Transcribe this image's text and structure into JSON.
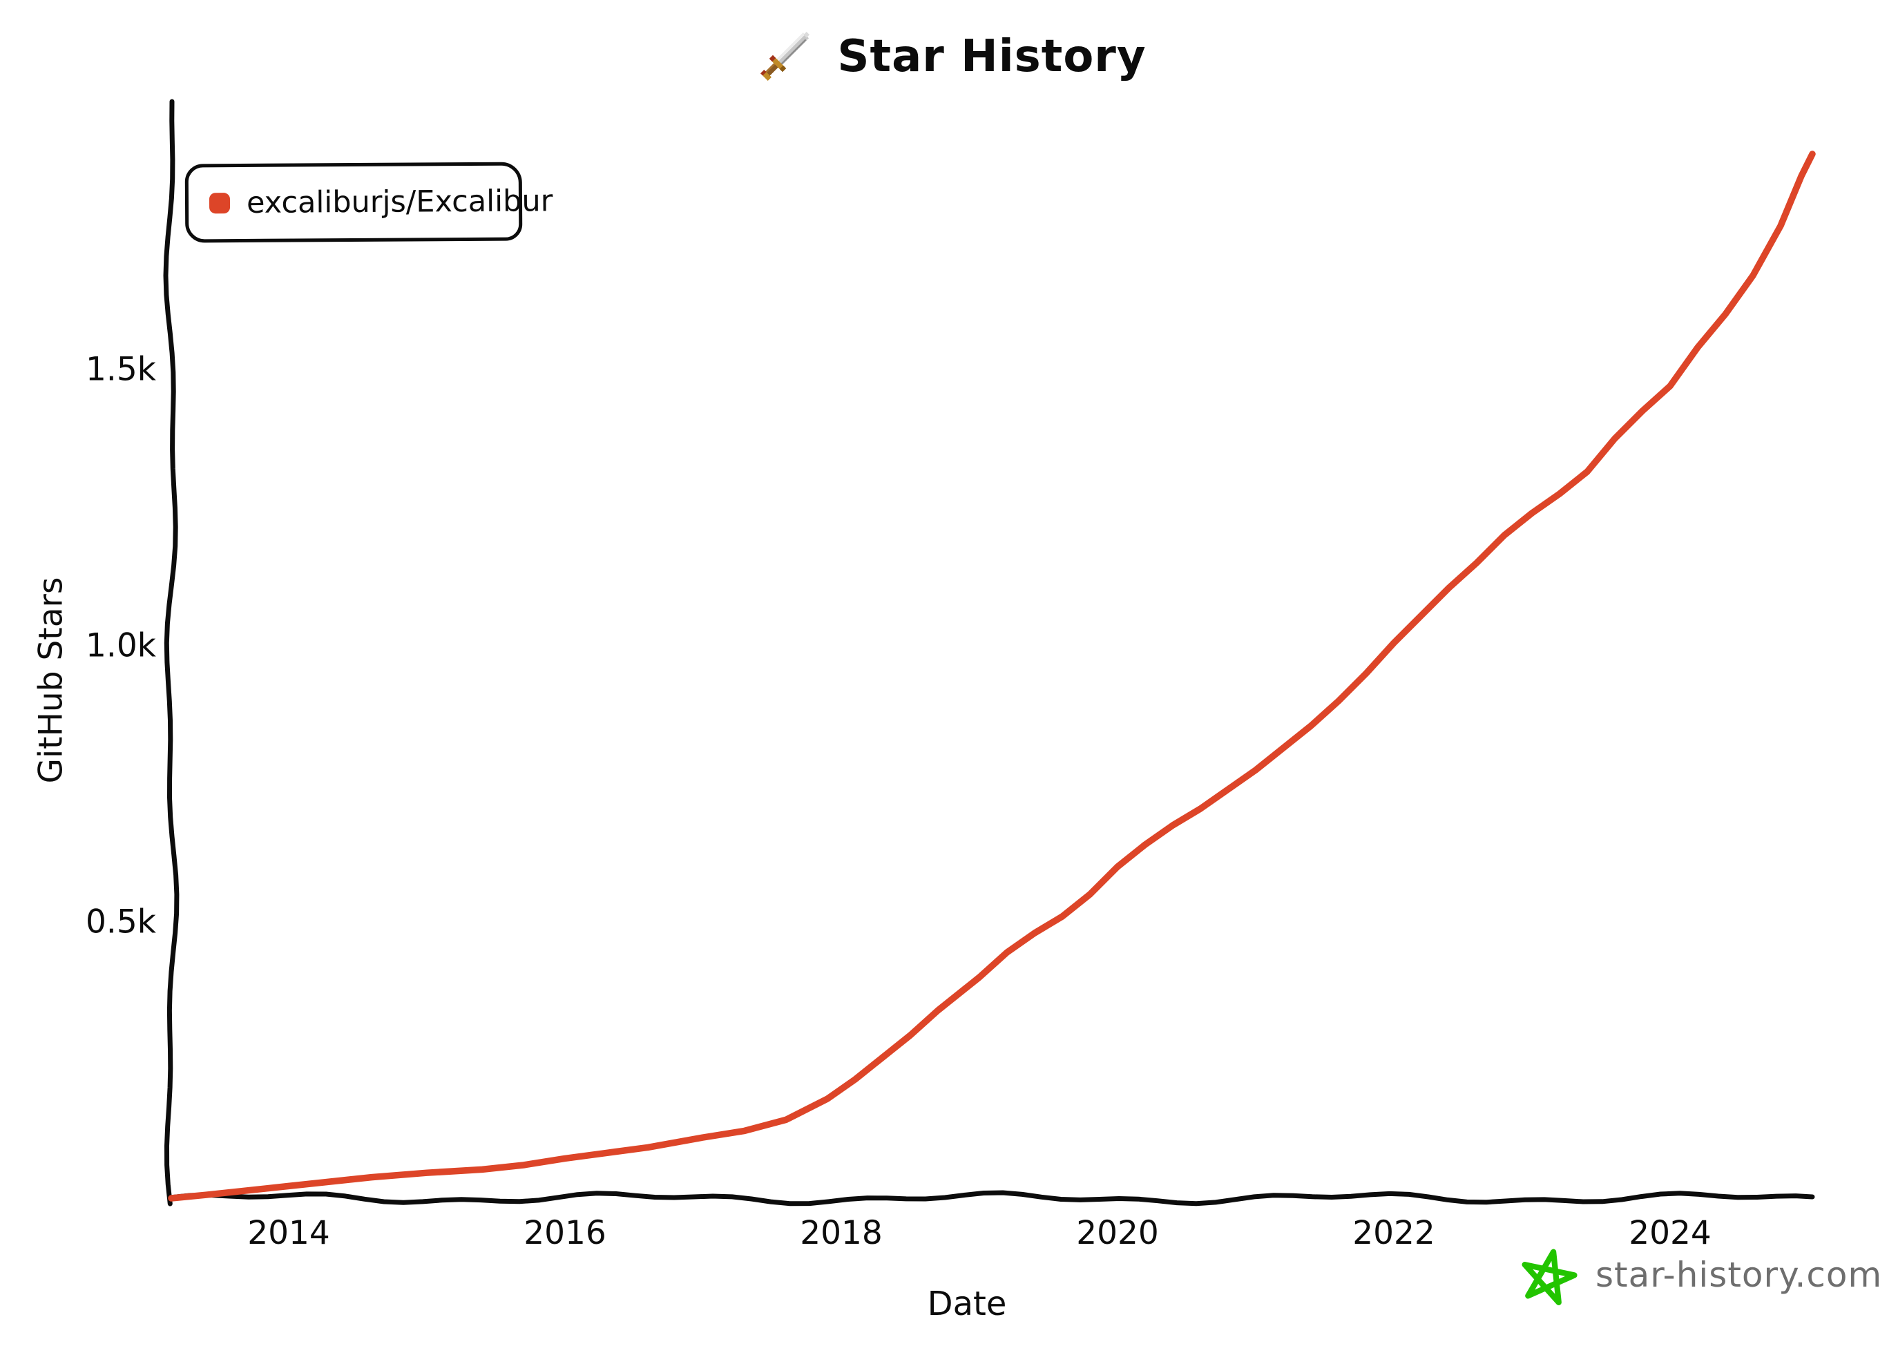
{
  "title": {
    "text": "Star History",
    "icon": "pixel-sword-icon"
  },
  "legend": {
    "items": [
      {
        "label": "excaliburjs/Excalibur",
        "color": "#dd4528"
      }
    ]
  },
  "footer": {
    "site": "star-history.com",
    "icon": "green-star-icon",
    "star_color": "#22c400",
    "text_color": "#6e6e6e"
  },
  "colors": {
    "axis": "#0c0c0c",
    "background": "#ffffff",
    "series_red": "#dd4528"
  },
  "chart_data": {
    "type": "line",
    "title": "Star History",
    "xlabel": "Date",
    "ylabel": "GitHub Stars",
    "grid": false,
    "legend_position": "top-left",
    "xlim": [
      2013.15,
      2025.03
    ],
    "ylim": [
      0,
      1900
    ],
    "x_ticks": [
      2014,
      2016,
      2018,
      2020,
      2022,
      2024
    ],
    "y_ticks": [
      {
        "value": 500,
        "label": "0.5k"
      },
      {
        "value": 1000,
        "label": "1.0k"
      },
      {
        "value": 1500,
        "label": "1.5k"
      }
    ],
    "series": [
      {
        "name": "excaliburjs/Excalibur",
        "color": "#dd4528",
        "points": [
          [
            2013.15,
            0
          ],
          [
            2013.4,
            6
          ],
          [
            2013.7,
            14
          ],
          [
            2014.0,
            22
          ],
          [
            2014.3,
            30
          ],
          [
            2014.6,
            38
          ],
          [
            2015.0,
            46
          ],
          [
            2015.4,
            52
          ],
          [
            2015.7,
            60
          ],
          [
            2016.0,
            72
          ],
          [
            2016.3,
            82
          ],
          [
            2016.6,
            92
          ],
          [
            2017.0,
            110
          ],
          [
            2017.3,
            122
          ],
          [
            2017.6,
            142
          ],
          [
            2017.9,
            180
          ],
          [
            2018.1,
            215
          ],
          [
            2018.3,
            255
          ],
          [
            2018.5,
            295
          ],
          [
            2018.7,
            340
          ],
          [
            2018.9,
            380
          ],
          [
            2019.0,
            400
          ],
          [
            2019.2,
            445
          ],
          [
            2019.4,
            480
          ],
          [
            2019.6,
            510
          ],
          [
            2019.8,
            550
          ],
          [
            2020.0,
            600
          ],
          [
            2020.2,
            640
          ],
          [
            2020.4,
            675
          ],
          [
            2020.6,
            705
          ],
          [
            2020.8,
            740
          ],
          [
            2021.0,
            775
          ],
          [
            2021.2,
            815
          ],
          [
            2021.4,
            855
          ],
          [
            2021.6,
            900
          ],
          [
            2021.8,
            950
          ],
          [
            2022.0,
            1005
          ],
          [
            2022.2,
            1055
          ],
          [
            2022.4,
            1105
          ],
          [
            2022.6,
            1150
          ],
          [
            2022.8,
            1200
          ],
          [
            2023.0,
            1240
          ],
          [
            2023.2,
            1275
          ],
          [
            2023.4,
            1315
          ],
          [
            2023.6,
            1375
          ],
          [
            2023.8,
            1425
          ],
          [
            2024.0,
            1470
          ],
          [
            2024.2,
            1540
          ],
          [
            2024.4,
            1600
          ],
          [
            2024.6,
            1670
          ],
          [
            2024.8,
            1760
          ],
          [
            2024.95,
            1850
          ],
          [
            2025.03,
            1890
          ]
        ]
      }
    ]
  }
}
